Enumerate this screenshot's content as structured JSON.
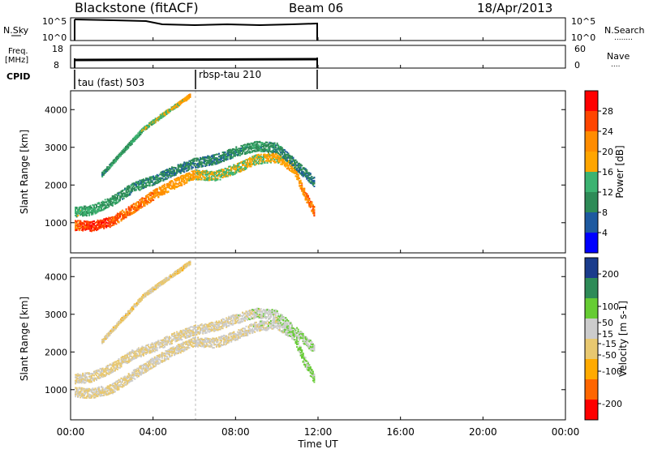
{
  "header": {
    "radar": "Blackstone (fitACF)",
    "beam": "Beam 06",
    "date": "18/Apr/2013"
  },
  "nsky_panel": {
    "label": "N.Sky",
    "left_ticks": [
      "10^5",
      "10^0"
    ],
    "right_ticks": [
      "10^5",
      "10^0"
    ],
    "right_label": "N.Search",
    "right_legend": "........"
  },
  "freq_panel": {
    "label_line1": "Freq.",
    "label_line2": "[MHz]",
    "left_ticks": [
      "18",
      "8"
    ],
    "right_ticks": [
      "60",
      "0"
    ],
    "right_label": "Nave",
    "right_legend": "...."
  },
  "cpid_panel": {
    "label": "CPID",
    "modes": [
      {
        "name": "tau (fast) 503",
        "start": "00:00",
        "end": "06:00"
      },
      {
        "name": "rbsp-tau 210",
        "start": "06:00",
        "end": "12:00"
      }
    ]
  },
  "colors": {
    "power_scale": [
      "#0000ff",
      "#1e5aa0",
      "#2e8b57",
      "#3cb371",
      "#ffa500",
      "#ff8c00",
      "#ff4500",
      "#ff0000"
    ],
    "velocity_scale": [
      "#ff0000",
      "#ff6600",
      "#ffaa00",
      "#e8c870",
      "#cccccc",
      "#66cc33",
      "#2e8b57",
      "#1a3c8c"
    ]
  },
  "chart_data": [
    {
      "type": "heatmap",
      "name": "power",
      "ylabel": "Slant Range [km]",
      "yticks": [
        "1000",
        "2000",
        "3000",
        "4000"
      ],
      "ylim": [
        200,
        4500
      ],
      "xlim": [
        "00:00",
        "24:00"
      ],
      "colorbar": {
        "label": "Power [dB]",
        "ticks": [
          "4",
          "8",
          "12",
          "16",
          "20",
          "24",
          "28"
        ],
        "range": [
          0,
          32
        ]
      },
      "series": [
        {
          "values": [
            [
              0.2,
              950,
              25
            ],
            [
              1,
              920,
              28
            ],
            [
              2,
              1050,
              26
            ],
            [
              3,
              1400,
              24
            ],
            [
              4,
              1750,
              22
            ],
            [
              5,
              2050,
              20
            ],
            [
              6,
              2300,
              18
            ],
            [
              7,
              2250,
              15
            ],
            [
              8,
              2450,
              16
            ],
            [
              9,
              2700,
              17
            ],
            [
              10,
              2750,
              18
            ],
            [
              10.8,
              2450,
              20
            ],
            [
              11.3,
              1800,
              22
            ],
            [
              11.8,
              1300,
              25
            ]
          ]
        },
        {
          "values": [
            [
              0.2,
              1300,
              14
            ],
            [
              1,
              1350,
              12
            ],
            [
              2,
              1600,
              11
            ],
            [
              3,
              1950,
              10
            ],
            [
              4,
              2150,
              10
            ],
            [
              5,
              2400,
              9
            ],
            [
              6,
              2600,
              9
            ],
            [
              7,
              2700,
              9
            ],
            [
              8,
              2900,
              10
            ],
            [
              9,
              3050,
              11
            ],
            [
              10,
              3000,
              10
            ],
            [
              11,
              2500,
              9
            ],
            [
              11.8,
              2100,
              8
            ]
          ]
        },
        {
          "values": [
            [
              1.5,
              2300,
              10
            ],
            [
              2.5,
              2900,
              11
            ],
            [
              3.5,
              3500,
              14
            ],
            [
              4.5,
              3900,
              16
            ],
            [
              5.3,
              4200,
              18
            ],
            [
              5.8,
              4400,
              20
            ]
          ]
        }
      ]
    },
    {
      "type": "heatmap",
      "name": "velocity",
      "ylabel": "Slant Range [km]",
      "yticks": [
        "1000",
        "2000",
        "3000",
        "4000"
      ],
      "ylim": [
        200,
        4500
      ],
      "xlim": [
        "00:00",
        "24:00"
      ],
      "xticks": [
        "00:00",
        "04:00",
        "08:00",
        "12:00",
        "16:00",
        "20:00",
        "00:00"
      ],
      "xlabel": "Time UT",
      "colorbar": {
        "label": "Velocity [m s-1]",
        "ticks": [
          "-200",
          "-100",
          "-50",
          "-15",
          "15",
          "50",
          "100",
          "200"
        ],
        "range": [
          -250,
          250
        ]
      },
      "series": [
        {
          "values": [
            [
              0.2,
              950,
              0
            ],
            [
              1,
              920,
              0
            ],
            [
              2,
              1050,
              -5
            ],
            [
              3,
              1400,
              0
            ],
            [
              4,
              1750,
              10
            ],
            [
              5,
              2050,
              5
            ],
            [
              6,
              2300,
              0
            ],
            [
              7,
              2250,
              5
            ],
            [
              8,
              2450,
              10
            ],
            [
              9,
              2700,
              20
            ],
            [
              10,
              2750,
              30
            ],
            [
              10.8,
              2450,
              60
            ],
            [
              11.3,
              1800,
              80
            ],
            [
              11.8,
              1300,
              70
            ]
          ]
        },
        {
          "values": [
            [
              0.2,
              1300,
              0
            ],
            [
              1,
              1350,
              -5
            ],
            [
              2,
              1600,
              0
            ],
            [
              3,
              1950,
              -10
            ],
            [
              4,
              2150,
              0
            ],
            [
              5,
              2400,
              10
            ],
            [
              6,
              2600,
              5
            ],
            [
              7,
              2700,
              10
            ],
            [
              8,
              2900,
              20
            ],
            [
              9,
              3050,
              30
            ],
            [
              10,
              3000,
              40
            ],
            [
              11,
              2500,
              60
            ],
            [
              11.8,
              2100,
              50
            ]
          ]
        },
        {
          "values": [
            [
              1.5,
              2300,
              -20
            ],
            [
              2.5,
              2900,
              -30
            ],
            [
              3.5,
              3500,
              -25
            ],
            [
              4.5,
              3900,
              -20
            ],
            [
              5.3,
              4200,
              -30
            ],
            [
              5.8,
              4400,
              -20
            ]
          ]
        }
      ]
    }
  ]
}
